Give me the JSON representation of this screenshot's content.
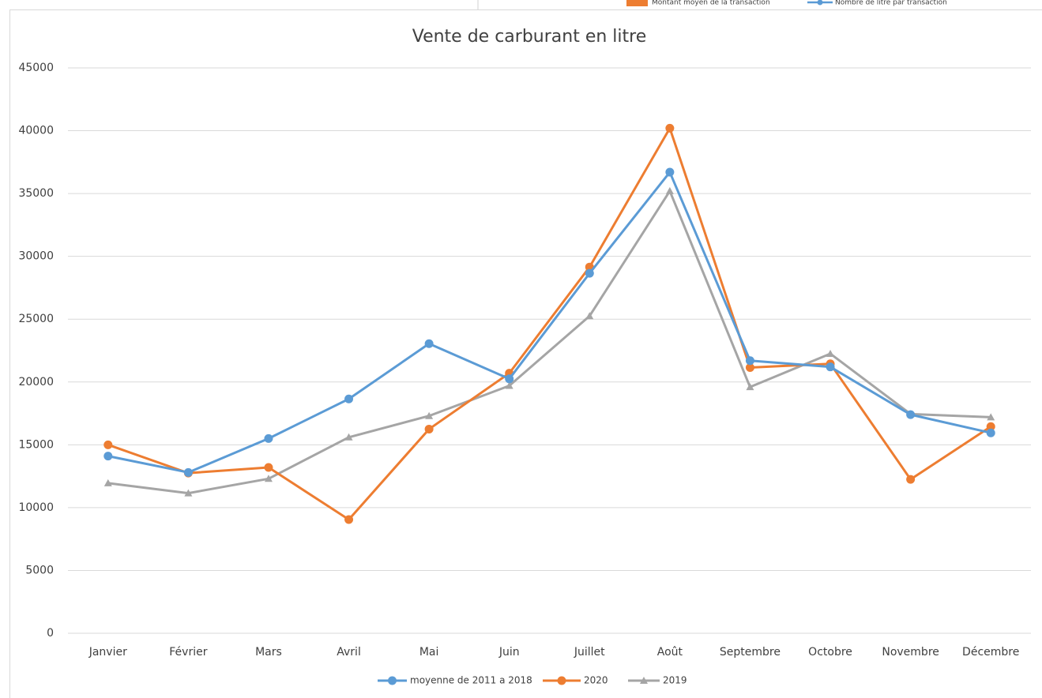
{
  "partial_legend": {
    "items": [
      {
        "name": "Montant moyen de la transaction",
        "color": "#ed7d31",
        "kind": "bar"
      },
      {
        "name": "Nombre de litre par transaction",
        "color": "#5b9bd5",
        "kind": "line"
      }
    ]
  },
  "chart_data": {
    "type": "line",
    "title": "Vente de carburant en litre",
    "categories": [
      "Janvier",
      "Février",
      "Mars",
      "Avril",
      "Mai",
      "Juin",
      "Juillet",
      "Août",
      "Septembre",
      "Octobre",
      "Novembre",
      "Décembre"
    ],
    "series": [
      {
        "name": "moyenne de 2011 a 2018",
        "color": "#5b9bd5",
        "marker": "circle",
        "values": [
          14100,
          12800,
          15500,
          18650,
          23050,
          20250,
          28650,
          36700,
          21700,
          21200,
          17400,
          15950
        ]
      },
      {
        "name": "2020",
        "color": "#ed7d31",
        "marker": "circle",
        "values": [
          15000,
          12750,
          13200,
          9050,
          16250,
          20700,
          29150,
          40200,
          21150,
          21450,
          12250,
          16450
        ]
      },
      {
        "name": "2019",
        "color": "#a5a5a5",
        "marker": "triangle",
        "values": [
          11950,
          11150,
          12300,
          15600,
          17300,
          19700,
          25250,
          35200,
          19600,
          22250,
          17450,
          17200
        ]
      }
    ],
    "ylim": [
      0,
      45000
    ],
    "yticks": [
      0,
      5000,
      10000,
      15000,
      20000,
      25000,
      30000,
      35000,
      40000,
      45000
    ],
    "grid": true,
    "legend": "bottom"
  }
}
